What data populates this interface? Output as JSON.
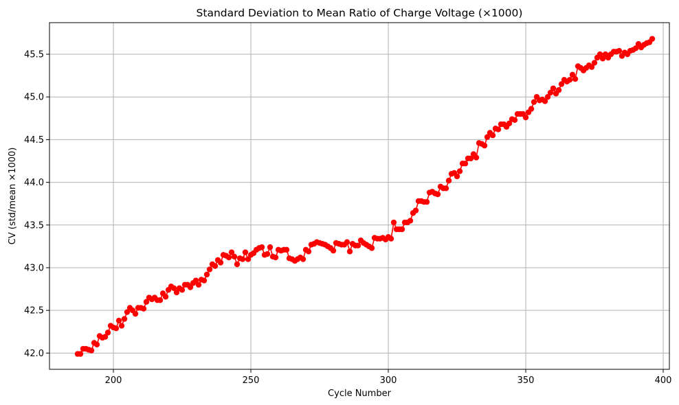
{
  "chart_data": {
    "type": "line",
    "title": "Standard Deviation to Mean Ratio of Charge Voltage (×1000)",
    "xlabel": "Cycle Number",
    "ylabel": "CV (std/mean ×1000)",
    "xlim": [
      176.75,
      402.25
    ],
    "ylim": [
      41.81,
      45.87
    ],
    "x_ticks": [
      200,
      250,
      300,
      350,
      400
    ],
    "y_ticks": [
      42.0,
      42.5,
      43.0,
      43.5,
      44.0,
      44.5,
      45.0,
      45.5
    ],
    "x_tick_labels": [
      "200",
      "250",
      "300",
      "350",
      "400"
    ],
    "y_tick_labels": [
      "42.0",
      "42.5",
      "43.0",
      "43.5",
      "44.0",
      "44.5",
      "45.0",
      "45.5"
    ],
    "grid": true,
    "series_color": "#ff0000",
    "marker": "circle",
    "series": [
      {
        "x_start": 187,
        "x_step": 1,
        "values": [
          41.99,
          41.99,
          42.05,
          42.05,
          42.04,
          42.03,
          42.12,
          42.1,
          42.2,
          42.18,
          42.19,
          42.24,
          42.32,
          42.3,
          42.29,
          42.38,
          42.32,
          42.4,
          42.48,
          42.53,
          42.5,
          42.46,
          42.53,
          42.53,
          42.52,
          42.6,
          42.65,
          42.63,
          42.65,
          42.62,
          42.62,
          42.7,
          42.66,
          42.74,
          42.78,
          42.76,
          42.71,
          42.76,
          42.74,
          42.8,
          42.8,
          42.77,
          42.82,
          42.85,
          42.8,
          42.86,
          42.85,
          42.92,
          42.98,
          43.04,
          43.02,
          43.09,
          43.06,
          43.15,
          43.14,
          43.12,
          43.18,
          43.13,
          43.04,
          43.11,
          43.1,
          43.18,
          43.1,
          43.15,
          43.17,
          43.21,
          43.23,
          43.24,
          43.15,
          43.16,
          43.24,
          43.13,
          43.12,
          43.21,
          43.2,
          43.21,
          43.21,
          43.11,
          43.1,
          43.08,
          43.1,
          43.12,
          43.1,
          43.21,
          43.19,
          43.27,
          43.28,
          43.3,
          43.29,
          43.28,
          43.27,
          43.25,
          43.23,
          43.2,
          43.29,
          43.28,
          43.27,
          43.27,
          43.3,
          43.19,
          43.28,
          43.26,
          43.26,
          43.32,
          43.29,
          43.27,
          43.25,
          43.23,
          43.35,
          43.34,
          43.34,
          43.35,
          43.33,
          43.36,
          43.34,
          43.53,
          43.45,
          43.45,
          43.45,
          43.53,
          43.53,
          43.55,
          43.64,
          43.67,
          43.78,
          43.78,
          43.77,
          43.77,
          43.88,
          43.89,
          43.87,
          43.86,
          43.95,
          43.93,
          43.93,
          44.02,
          44.1,
          44.11,
          44.07,
          44.13,
          44.22,
          44.22,
          44.28,
          44.28,
          44.33,
          44.29,
          44.46,
          44.45,
          44.43,
          44.53,
          44.58,
          44.55,
          44.63,
          44.62,
          44.68,
          44.68,
          44.65,
          44.69,
          44.74,
          44.73,
          44.8,
          44.8,
          44.8,
          44.76,
          44.82,
          44.86,
          44.94,
          45.0,
          44.96,
          44.97,
          44.95,
          45.0,
          45.05,
          45.1,
          45.04,
          45.08,
          45.15,
          45.2,
          45.18,
          45.2,
          45.26,
          45.21,
          45.36,
          45.34,
          45.31,
          45.34,
          45.37,
          45.35,
          45.4,
          45.46,
          45.5,
          45.45,
          45.5,
          45.46,
          45.5,
          45.53,
          45.53,
          45.54,
          45.48,
          45.52,
          45.5,
          45.54,
          45.55,
          45.57,
          45.62,
          45.58,
          45.61,
          45.63,
          45.64,
          45.68
        ]
      }
    ]
  }
}
